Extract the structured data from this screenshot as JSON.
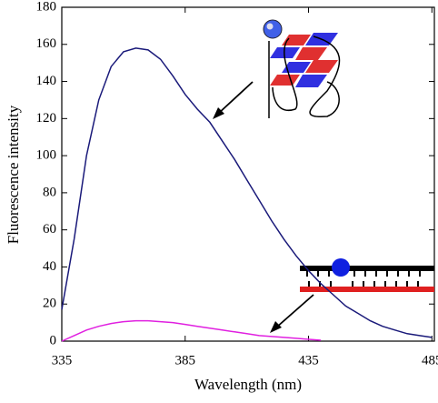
{
  "chart_data": {
    "type": "line",
    "x_label": "Wavelength (nm)",
    "y_label": "Fluorescence intensity",
    "x": [
      335,
      340,
      345,
      350,
      355,
      360,
      365,
      370,
      375,
      380,
      385,
      390,
      395,
      400,
      405,
      410,
      415,
      420,
      425,
      430,
      435,
      440,
      445,
      450,
      455,
      460,
      465,
      470,
      475,
      480,
      485
    ],
    "series": [
      {
        "color": "#1a1a7a",
        "values": [
          17,
          55,
          100,
          130,
          148,
          156,
          158,
          157,
          152,
          143,
          133,
          125,
          118,
          108,
          98,
          87,
          76,
          65,
          55,
          46,
          38,
          31,
          25,
          19,
          15,
          11,
          8,
          6,
          4,
          3,
          2
        ]
      },
      {
        "color": "#e020e0",
        "values": [
          0,
          3,
          6,
          8,
          9.5,
          10.5,
          11,
          11,
          10.5,
          10,
          9,
          8,
          7,
          6,
          5,
          4,
          3,
          2.5,
          2,
          1.5,
          1,
          0.5,
          null,
          null,
          null,
          null,
          null,
          null,
          null,
          null,
          null
        ]
      }
    ],
    "xlim": [
      335,
      486
    ],
    "ylim": [
      0,
      180
    ],
    "xticks": [
      335,
      385,
      435,
      485
    ],
    "yticks": [
      0,
      20,
      40,
      60,
      80,
      100,
      120,
      140,
      160,
      180
    ]
  }
}
